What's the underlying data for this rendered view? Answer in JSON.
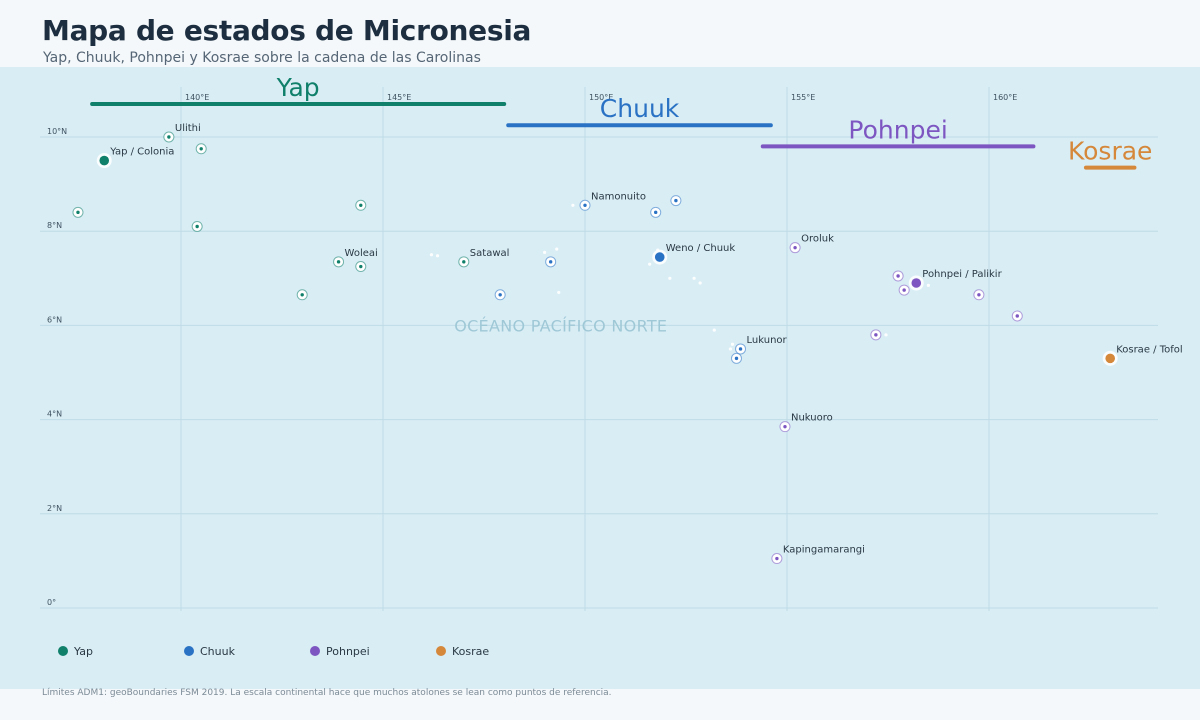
{
  "title": "Mapa de estados de Micronesia",
  "subtitle": "Yap, Chuuk, Pohnpei y Kosrae sobre la cadena de las Carolinas",
  "source_note": "Límites ADM1: geoBoundaries FSM 2019. La escala continental hace que muchos atolones se lean como puntos de referencia.",
  "ocean_label": "OCÉANO PACÍFICO NORTE",
  "lon_ticks": [
    {
      "value": 140,
      "label": "140°E"
    },
    {
      "value": 145,
      "label": "145°E"
    },
    {
      "value": 150,
      "label": "150°E"
    },
    {
      "value": 155,
      "label": "155°E"
    },
    {
      "value": 160,
      "label": "160°E"
    }
  ],
  "lat_ticks": [
    {
      "value": 10,
      "label": "10°N"
    },
    {
      "value": 8,
      "label": "8°N"
    },
    {
      "value": 6,
      "label": "6°N"
    },
    {
      "value": 4,
      "label": "4°N"
    },
    {
      "value": 2,
      "label": "2°N"
    },
    {
      "value": 0,
      "label": "0°"
    }
  ],
  "states": [
    {
      "id": "yap",
      "name": "Yap",
      "color": "#10806b",
      "lon_range": [
        137.8,
        148.0
      ],
      "lat": 10.7
    },
    {
      "id": "chuuk",
      "name": "Chuuk",
      "color": "#2a72c4",
      "lon_range": [
        148.1,
        154.6
      ],
      "lat": 10.25
    },
    {
      "id": "pohnpei",
      "name": "Pohnpei",
      "color": "#7d56c1",
      "lon_range": [
        154.4,
        161.1
      ],
      "lat": 9.8
    },
    {
      "id": "kosrae",
      "name": "Kosrae",
      "color": "#d5873a",
      "lon_range": [
        162.4,
        163.6
      ],
      "lat": 9.35
    }
  ],
  "capitals": [
    {
      "name": "Yap / Colonia",
      "state": "yap",
      "lon": 138.1,
      "lat": 9.5
    },
    {
      "name": "Weno / Chuuk",
      "state": "chuuk",
      "lon": 151.85,
      "lat": 7.45
    },
    {
      "name": "Pohnpei / Palikir",
      "state": "pohnpei",
      "lon": 158.2,
      "lat": 6.9
    },
    {
      "name": "Kosrae / Tofol",
      "state": "kosrae",
      "lon": 163.0,
      "lat": 5.3
    }
  ],
  "atolls": [
    {
      "name": "Ulithi",
      "state": "yap",
      "lon": 139.7,
      "lat": 10.0,
      "labeled": true
    },
    {
      "name": "",
      "state": "yap",
      "lon": 140.5,
      "lat": 9.75,
      "labeled": false
    },
    {
      "name": "",
      "state": "yap",
      "lon": 137.45,
      "lat": 8.4,
      "labeled": false
    },
    {
      "name": "",
      "state": "yap",
      "lon": 140.4,
      "lat": 8.1,
      "labeled": false
    },
    {
      "name": "",
      "state": "yap",
      "lon": 144.45,
      "lat": 8.55,
      "labeled": false
    },
    {
      "name": "Woleai",
      "state": "yap",
      "lon": 143.9,
      "lat": 7.35,
      "labeled": true
    },
    {
      "name": "",
      "state": "yap",
      "lon": 144.45,
      "lat": 7.25,
      "labeled": false
    },
    {
      "name": "",
      "state": "yap",
      "lon": 143.0,
      "lat": 6.65,
      "labeled": false
    },
    {
      "name": "Satawal",
      "state": "yap",
      "lon": 147.0,
      "lat": 7.35,
      "labeled": true
    },
    {
      "name": "",
      "state": "chuuk",
      "lon": 147.9,
      "lat": 6.65,
      "labeled": false
    },
    {
      "name": "",
      "state": "chuuk",
      "lon": 149.15,
      "lat": 7.35,
      "labeled": false
    },
    {
      "name": "Namonuito",
      "state": "chuuk",
      "lon": 150.0,
      "lat": 8.55,
      "labeled": true
    },
    {
      "name": "",
      "state": "chuuk",
      "lon": 151.75,
      "lat": 8.4,
      "labeled": false
    },
    {
      "name": "",
      "state": "chuuk",
      "lon": 152.25,
      "lat": 8.65,
      "labeled": false
    },
    {
      "name": "Lukunor",
      "state": "chuuk",
      "lon": 153.85,
      "lat": 5.5,
      "labeled": true
    },
    {
      "name": "",
      "state": "chuuk",
      "lon": 153.75,
      "lat": 5.3,
      "labeled": false
    },
    {
      "name": "Oroluk",
      "state": "pohnpei",
      "lon": 155.2,
      "lat": 7.65,
      "labeled": true
    },
    {
      "name": "",
      "state": "pohnpei",
      "lon": 157.75,
      "lat": 7.05,
      "labeled": false
    },
    {
      "name": "",
      "state": "pohnpei",
      "lon": 157.9,
      "lat": 6.75,
      "labeled": false
    },
    {
      "name": "",
      "state": "pohnpei",
      "lon": 159.75,
      "lat": 6.65,
      "labeled": false
    },
    {
      "name": "",
      "state": "pohnpei",
      "lon": 160.7,
      "lat": 6.2,
      "labeled": false
    },
    {
      "name": "",
      "state": "pohnpei",
      "lon": 157.2,
      "lat": 5.8,
      "labeled": false
    },
    {
      "name": "Nukuoro",
      "state": "pohnpei",
      "lon": 154.95,
      "lat": 3.85,
      "labeled": true
    },
    {
      "name": "Kapingamarangi",
      "state": "pohnpei",
      "lon": 154.75,
      "lat": 1.05,
      "labeled": true
    }
  ],
  "reef_islets": [
    {
      "lon": 146.2,
      "lat": 7.5
    },
    {
      "lon": 146.35,
      "lat": 7.48
    },
    {
      "lon": 149.0,
      "lat": 7.55
    },
    {
      "lon": 149.3,
      "lat": 7.62
    },
    {
      "lon": 149.35,
      "lat": 6.7
    },
    {
      "lon": 149.7,
      "lat": 8.55
    },
    {
      "lon": 151.6,
      "lat": 7.3
    },
    {
      "lon": 151.8,
      "lat": 7.6
    },
    {
      "lon": 152.1,
      "lat": 7.0
    },
    {
      "lon": 152.7,
      "lat": 7.0
    },
    {
      "lon": 152.85,
      "lat": 6.9
    },
    {
      "lon": 153.2,
      "lat": 5.9
    },
    {
      "lon": 153.6,
      "lat": 5.5
    },
    {
      "lon": 153.65,
      "lat": 5.6
    },
    {
      "lon": 157.45,
      "lat": 5.8
    },
    {
      "lon": 158.5,
      "lat": 6.85
    }
  ],
  "legend": [
    {
      "label": "Yap",
      "color": "#10806b"
    },
    {
      "label": "Chuuk",
      "color": "#2a72c4"
    },
    {
      "label": "Pohnpei",
      "color": "#7d56c1"
    },
    {
      "label": "Kosrae",
      "color": "#d5873a"
    }
  ]
}
